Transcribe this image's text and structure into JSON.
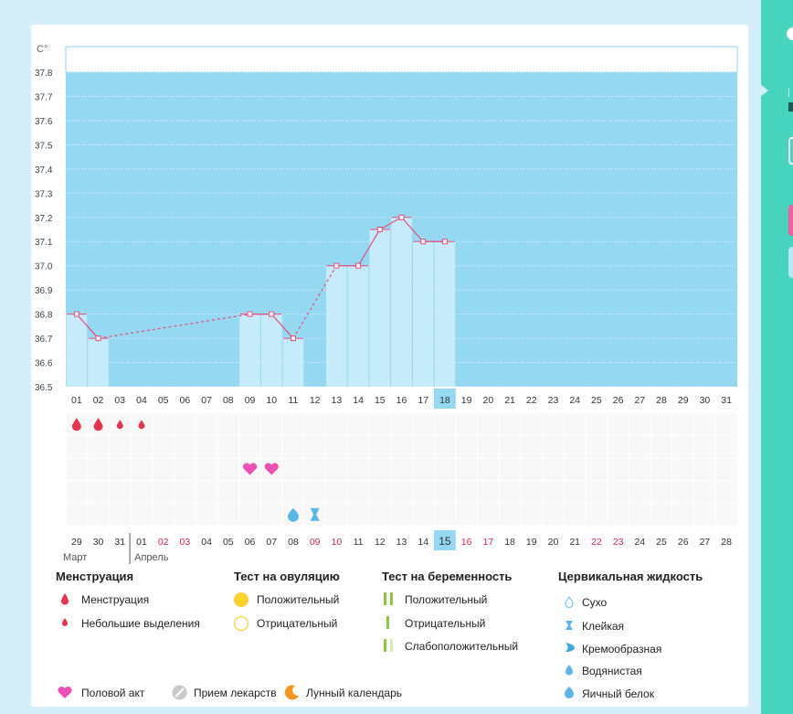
{
  "chart_data": {
    "type": "bar",
    "ylabel": "C°",
    "ylim": [
      36.5,
      37.8
    ],
    "y_ticks": [
      "37.8",
      "37.7",
      "37.6",
      "37.5",
      "37.4",
      "37.3",
      "37.2",
      "37.1",
      "37.0",
      "36.9",
      "36.8",
      "36.7",
      "36.6",
      "36.5"
    ],
    "cycle_days": [
      "01",
      "02",
      "03",
      "04",
      "05",
      "06",
      "07",
      "08",
      "09",
      "10",
      "11",
      "12",
      "13",
      "14",
      "15",
      "16",
      "17",
      "18",
      "19",
      "20",
      "21",
      "22",
      "23",
      "24",
      "25",
      "26",
      "27",
      "28",
      "29",
      "30",
      "31"
    ],
    "current_cycle_day": "18",
    "temperatures": [
      36.8,
      36.7,
      null,
      null,
      null,
      null,
      null,
      null,
      36.8,
      36.8,
      36.7,
      null,
      37.0,
      37.0,
      37.15,
      37.2,
      37.1,
      37.1,
      null,
      null,
      null,
      null,
      null,
      null,
      null,
      null,
      null,
      null,
      null,
      null,
      null
    ],
    "dashed_segments": [
      [
        2,
        9
      ],
      [
        11,
        13
      ]
    ],
    "dates": [
      "29",
      "30",
      "31",
      "01",
      "02",
      "03",
      "04",
      "05",
      "06",
      "07",
      "08",
      "09",
      "10",
      "11",
      "12",
      "13",
      "14",
      "15",
      "16",
      "17",
      "18",
      "19",
      "20",
      "21",
      "22",
      "23",
      "24",
      "25",
      "26",
      "27",
      "28"
    ],
    "date_colors": [
      "#333",
      "#333",
      "#333",
      "#333",
      "#d8264f",
      "#d8264f",
      "#333",
      "#333",
      "#333",
      "#333",
      "#333",
      "#d8264f",
      "#d8264f",
      "#333",
      "#333",
      "#333",
      "#333",
      "#333",
      "#d8264f",
      "#d8264f",
      "#333",
      "#333",
      "#333",
      "#333",
      "#d8264f",
      "#d8264f",
      "#333",
      "#333",
      "#333",
      "#333",
      "#333"
    ],
    "today_date": "15",
    "month_labels": [
      "Март",
      "Апрель"
    ],
    "menstruation_marks": [
      "large",
      "large",
      "small",
      "small"
    ],
    "intercourse_days": [
      9,
      10
    ],
    "fluid_marks": [
      {
        "day": 11,
        "type": "egg-white"
      },
      {
        "day": 12,
        "type": "sticky"
      }
    ]
  },
  "legend": {
    "menstruation": {
      "title": "Менструация",
      "items": [
        "Менструация",
        "Небольшие выделения"
      ]
    },
    "ovulation": {
      "title": "Тест на овуляцию",
      "items": [
        "Положительный",
        "Отрицательный"
      ]
    },
    "pregnancy": {
      "title": "Тест на беременность",
      "items": [
        "Положительный",
        "Отрицательный",
        "Слабоположительный"
      ]
    },
    "cervical": {
      "title": "Цервикальная жидкость",
      "items": [
        "Сухо",
        "Клейкая",
        "Кремообразная",
        "Водянистая",
        "Яичный белок"
      ]
    },
    "bottom": [
      "Половой акт",
      "Прием лекарств",
      "Лунный календарь"
    ]
  },
  "colors": {
    "chart_bg": "#94d8f2",
    "bar": "#c6ebfa",
    "line": "#ea4c7a",
    "today": "#94d8f2",
    "menstruation": "#e8324d",
    "heart": "#ef4fb4",
    "teal": "#47d4bf"
  }
}
